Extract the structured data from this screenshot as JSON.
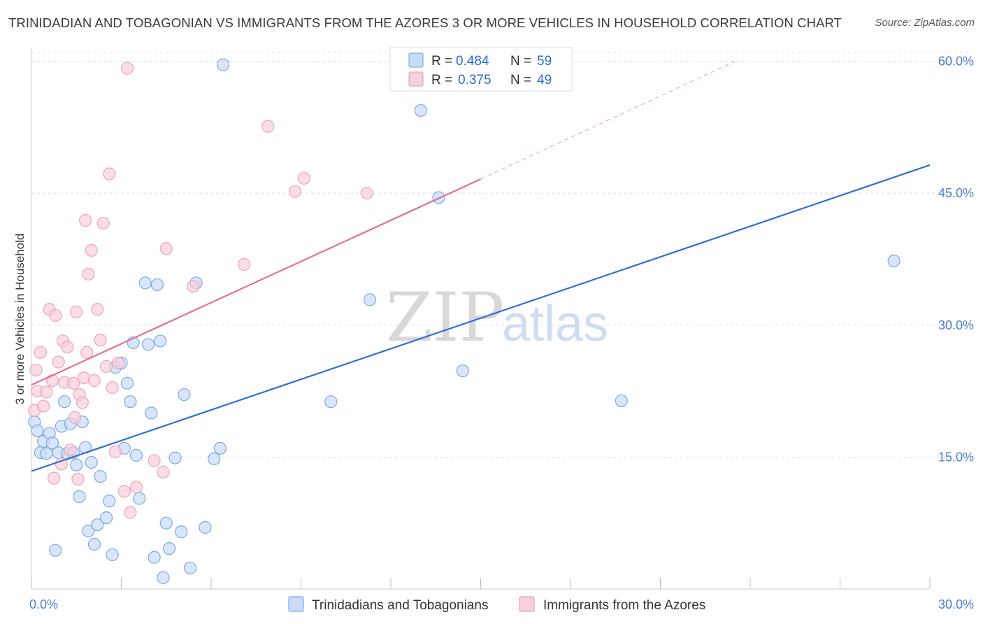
{
  "title": "TRINIDADIAN AND TOBAGONIAN VS IMMIGRANTS FROM THE AZORES 3 OR MORE VEHICLES IN HOUSEHOLD CORRELATION CHART",
  "source": "Source: ZipAtlas.com",
  "watermark": {
    "zip": "ZIP",
    "atlas": "atlas"
  },
  "chart_data": {
    "type": "scatter",
    "xlabel": "",
    "ylabel": "3 or more Vehicles in Household",
    "xlim": [
      0,
      30
    ],
    "ylim": [
      0,
      61
    ],
    "x_tick_labels": [
      "0.0%",
      "30.0%"
    ],
    "x_ticks": [
      0,
      3,
      6,
      9,
      12,
      15,
      18,
      21,
      24,
      27,
      30
    ],
    "y_ticks": [
      15,
      30,
      45,
      60
    ],
    "y_tick_labels": [
      "15.0%",
      "30.0%",
      "45.0%",
      "60.0%"
    ],
    "grid": true,
    "legend_position": "top-center",
    "series": [
      {
        "name": "Trinidadians and Tobagonians",
        "color": "#7aaae8",
        "fill": "#c9dcf6",
        "line_color": "#2d6fd0",
        "r_label": "R =",
        "r_value": "0.484",
        "n_label": "N =",
        "n_value": "59",
        "trend": {
          "x0": 0,
          "y0": 13.4,
          "x1": 30,
          "y1": 48.2
        },
        "x": [
          0.1,
          0.2,
          0.3,
          0.4,
          0.5,
          0.6,
          0.7,
          0.8,
          0.9,
          1.0,
          1.1,
          1.2,
          1.3,
          1.4,
          1.5,
          1.6,
          1.7,
          1.8,
          1.9,
          2.0,
          2.1,
          2.2,
          2.3,
          2.5,
          2.6,
          2.7,
          2.8,
          3.0,
          3.1,
          3.2,
          3.3,
          3.4,
          3.5,
          3.6,
          3.8,
          3.9,
          4.0,
          4.1,
          4.2,
          4.3,
          4.4,
          4.5,
          4.6,
          4.8,
          5.0,
          5.1,
          5.3,
          5.5,
          5.8,
          6.1,
          6.3,
          6.4,
          10.0,
          11.3,
          13.0,
          13.6,
          14.4,
          19.7,
          28.8
        ],
        "y": [
          19.0,
          18.0,
          15.5,
          16.8,
          15.4,
          17.7,
          16.6,
          4.4,
          15.5,
          18.5,
          21.3,
          15.4,
          18.8,
          15.5,
          14.1,
          10.5,
          19.0,
          16.1,
          6.6,
          14.4,
          5.1,
          7.3,
          12.8,
          8.1,
          10.0,
          3.9,
          25.2,
          25.7,
          16.0,
          23.4,
          21.3,
          28.0,
          15.2,
          10.3,
          34.8,
          27.8,
          20.0,
          3.6,
          34.6,
          28.2,
          1.3,
          7.5,
          4.6,
          14.9,
          6.5,
          22.1,
          2.4,
          34.8,
          7.0,
          14.8,
          16.0,
          59.6,
          21.3,
          32.9,
          54.4,
          44.5,
          24.8,
          21.4,
          37.3
        ]
      },
      {
        "name": "Immigrants from the Azores",
        "color": "#eea4bd",
        "fill": "#f8cfdc",
        "line_color": "#e0709a",
        "r_label": "R =",
        "r_value": "0.375",
        "n_label": "N =",
        "n_value": "49",
        "trend": {
          "x0": 0,
          "y0": 23.2,
          "x1": 15,
          "y1": 46.6
        },
        "trend_ext": {
          "x0": 15,
          "y0": 46.6,
          "x1": 23.5,
          "y1": 60.0
        },
        "x": [
          0.1,
          0.15,
          0.2,
          0.3,
          0.4,
          0.5,
          0.6,
          0.7,
          0.75,
          0.8,
          0.9,
          1.0,
          1.05,
          1.1,
          1.2,
          1.3,
          1.4,
          1.45,
          1.5,
          1.55,
          1.6,
          1.7,
          1.75,
          1.8,
          1.85,
          1.9,
          2.0,
          2.1,
          2.2,
          2.3,
          2.4,
          2.5,
          2.6,
          2.7,
          2.8,
          2.9,
          3.1,
          3.2,
          3.3,
          3.5,
          4.1,
          4.4,
          4.5,
          5.4,
          7.1,
          7.9,
          8.8,
          9.1,
          11.2
        ],
        "y": [
          20.3,
          24.9,
          22.5,
          26.9,
          20.8,
          22.4,
          31.8,
          23.7,
          12.6,
          31.1,
          25.8,
          14.2,
          28.2,
          23.5,
          27.5,
          15.8,
          23.4,
          19.5,
          31.5,
          12.5,
          22.1,
          21.2,
          24.0,
          41.9,
          26.9,
          35.8,
          38.5,
          23.7,
          31.8,
          28.3,
          41.6,
          25.3,
          47.2,
          22.9,
          15.6,
          25.7,
          11.1,
          59.2,
          8.7,
          11.6,
          14.6,
          13.3,
          38.7,
          34.4,
          36.9,
          52.6,
          45.2,
          46.7,
          45.0
        ]
      }
    ]
  }
}
